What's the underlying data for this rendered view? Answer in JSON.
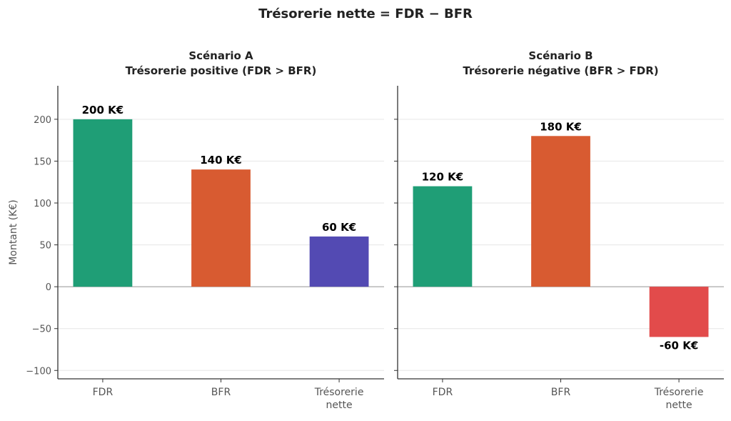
{
  "chart_data": [
    {
      "type": "bar",
      "suptitle": "Trésorerie nette = FDR − BFR",
      "title_line1": "Scénario A",
      "title_line2": "Trésorerie positive (FDR > BFR)",
      "categories": [
        "FDR",
        "BFR",
        "Trésorerie nette"
      ],
      "category_lines": [
        [
          "FDR"
        ],
        [
          "BFR"
        ],
        [
          "Trésorerie",
          "nette"
        ]
      ],
      "values": [
        200,
        140,
        60
      ],
      "data_labels": [
        "200 K€",
        "140 K€",
        "60 K€"
      ],
      "colors": [
        "#1f9e76",
        "#d85b31",
        "#534ab3"
      ],
      "ylabel": "Montant (K€)",
      "ylim": [
        -110,
        240
      ],
      "yticks": [
        -100,
        -50,
        0,
        50,
        100,
        150,
        200
      ],
      "ytick_labels": [
        "−100",
        "−50",
        "0",
        "50",
        "100",
        "150",
        "200"
      ],
      "grid": true
    },
    {
      "type": "bar",
      "title_line1": "Scénario B",
      "title_line2": "Trésorerie négative (BFR > FDR)",
      "categories": [
        "FDR",
        "BFR",
        "Trésorerie nette"
      ],
      "category_lines": [
        [
          "FDR"
        ],
        [
          "BFR"
        ],
        [
          "Trésorerie",
          "nette"
        ]
      ],
      "values": [
        120,
        180,
        -60
      ],
      "data_labels": [
        "120 K€",
        "180 K€",
        "-60 K€"
      ],
      "colors": [
        "#1f9e76",
        "#d85b31",
        "#e24b4b"
      ],
      "ylim": [
        -110,
        240
      ],
      "yticks": [
        -100,
        -50,
        0,
        50,
        100,
        150,
        200
      ],
      "grid": true
    }
  ]
}
